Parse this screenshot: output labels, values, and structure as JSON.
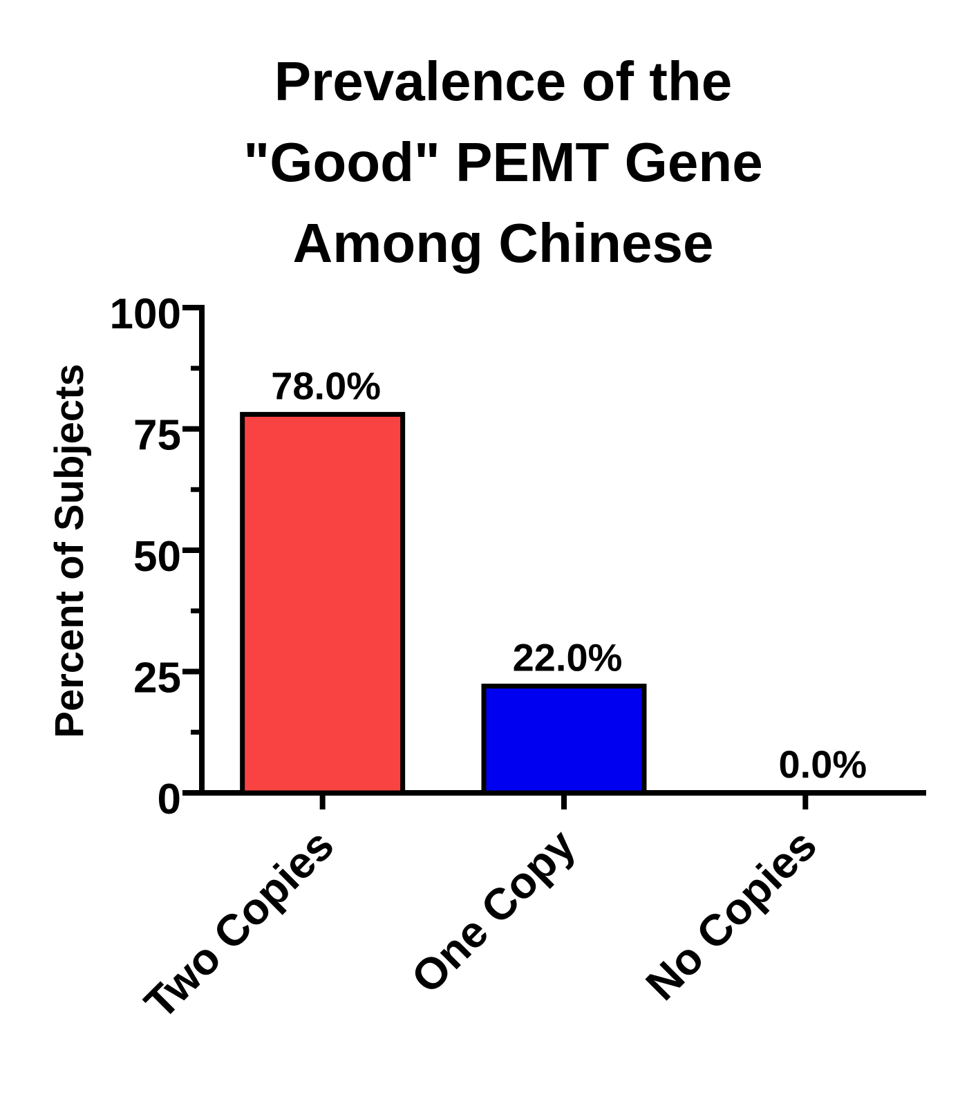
{
  "chart_data": {
    "type": "bar",
    "title": [
      "Prevalence of the",
      "\"Good\" PEMT Gene",
      "Among Chinese"
    ],
    "y_label": "Percent of Subjects",
    "categories": [
      "Two Copies",
      "One Copy",
      "No Copies"
    ],
    "values": [
      78,
      22,
      0
    ],
    "value_labels": [
      "78.0%",
      "22.0%",
      "0.0%"
    ],
    "colors": [
      "#f94343",
      "#0000f0",
      "#ffffff"
    ],
    "ylim": [
      0,
      100
    ],
    "yticks": [
      0,
      25,
      50,
      75,
      100
    ],
    "yminorticks": [
      12.5,
      37.5,
      62.5,
      87.5
    ],
    "grid": false
  }
}
